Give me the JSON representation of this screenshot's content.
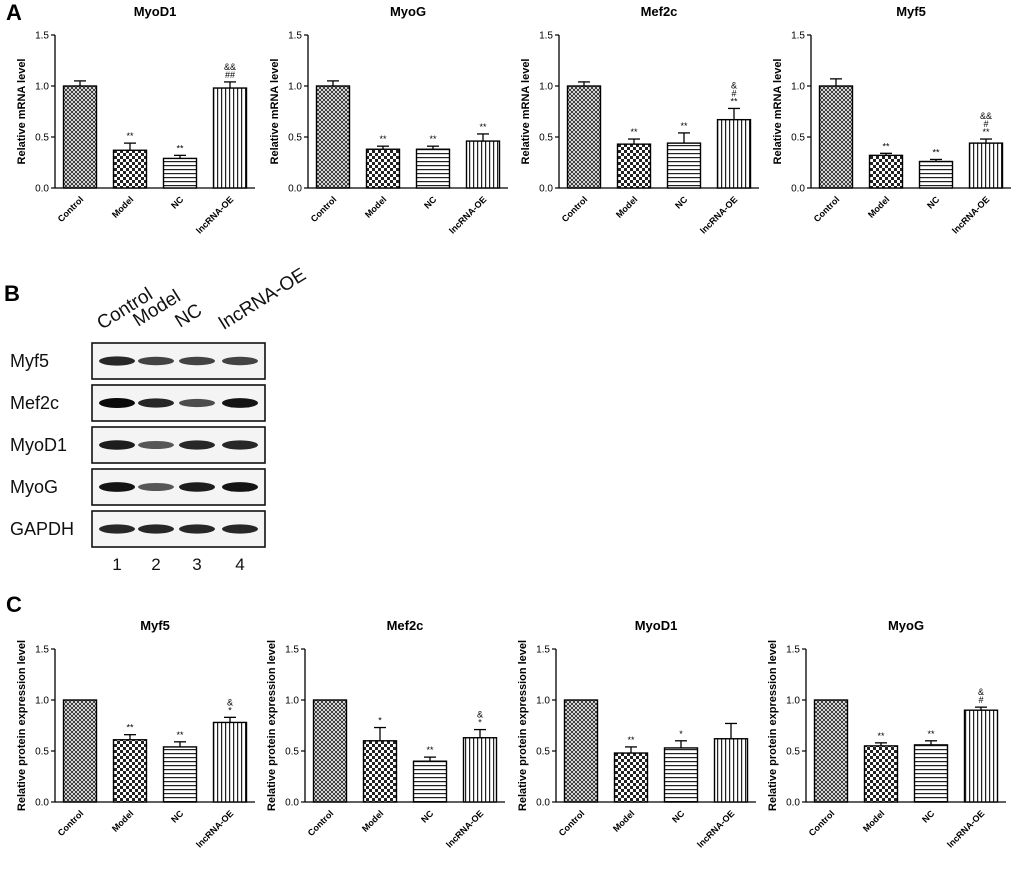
{
  "panels": {
    "a": "A",
    "b": "B",
    "c": "C"
  },
  "western_blot": {
    "lane_headers": [
      "Control",
      "Model",
      "NC",
      "lncRNA-OE"
    ],
    "lane_numbers": [
      "1",
      "2",
      "3",
      "4"
    ],
    "rows": [
      {
        "label": "Myf5",
        "intensity": [
          0.85,
          0.7,
          0.7,
          0.7
        ]
      },
      {
        "label": "Mef2c",
        "intensity": [
          1.0,
          0.85,
          0.65,
          0.95
        ]
      },
      {
        "label": "MyoD1",
        "intensity": [
          0.9,
          0.6,
          0.85,
          0.85
        ]
      },
      {
        "label": "MyoG",
        "intensity": [
          0.95,
          0.6,
          0.9,
          0.95
        ]
      },
      {
        "label": "GAPDH",
        "intensity": [
          0.85,
          0.85,
          0.85,
          0.85
        ]
      }
    ]
  },
  "chart_data": [
    {
      "type": "bar",
      "panel": "A",
      "title": "MyoD1",
      "ylabel": "Relative mRNA level",
      "ylim": [
        0,
        1.5
      ],
      "yticks": [
        "0.0",
        "0.5",
        "1.0",
        "1.5"
      ],
      "categories": [
        "Control",
        "Model",
        "NC",
        "lncRNA-OE"
      ],
      "values": [
        1.0,
        0.37,
        0.29,
        0.98
      ],
      "errors": [
        0.05,
        0.07,
        0.03,
        0.06
      ],
      "annotations": [
        [],
        [
          "**"
        ],
        [
          "**"
        ],
        [
          "&&",
          "##"
        ]
      ]
    },
    {
      "type": "bar",
      "panel": "A",
      "title": "MyoG",
      "ylabel": "Relative mRNA level",
      "ylim": [
        0,
        1.5
      ],
      "yticks": [
        "0.0",
        "0.5",
        "1.0",
        "1.5"
      ],
      "categories": [
        "Control",
        "Model",
        "NC",
        "lncRNA-OE"
      ],
      "values": [
        1.0,
        0.38,
        0.38,
        0.46
      ],
      "errors": [
        0.05,
        0.03,
        0.03,
        0.07
      ],
      "annotations": [
        [],
        [
          "**"
        ],
        [
          "**"
        ],
        [
          "**"
        ]
      ]
    },
    {
      "type": "bar",
      "panel": "A",
      "title": "Mef2c",
      "ylabel": "Relative mRNA level",
      "ylim": [
        0,
        1.5
      ],
      "yticks": [
        "0.0",
        "0.5",
        "1.0",
        "1.5"
      ],
      "categories": [
        "Control",
        "Model",
        "NC",
        "lncRNA-OE"
      ],
      "values": [
        1.0,
        0.43,
        0.44,
        0.67
      ],
      "errors": [
        0.04,
        0.05,
        0.1,
        0.11
      ],
      "annotations": [
        [],
        [
          "**"
        ],
        [
          "**"
        ],
        [
          "&",
          "#",
          "**"
        ]
      ]
    },
    {
      "type": "bar",
      "panel": "A",
      "title": "Myf5",
      "ylabel": "Relative mRNA level",
      "ylim": [
        0,
        1.5
      ],
      "yticks": [
        "0.0",
        "0.5",
        "1.0",
        "1.5"
      ],
      "categories": [
        "Control",
        "Model",
        "NC",
        "lncRNA-OE"
      ],
      "values": [
        1.0,
        0.32,
        0.26,
        0.44
      ],
      "errors": [
        0.07,
        0.02,
        0.02,
        0.04
      ],
      "annotations": [
        [],
        [
          "**"
        ],
        [
          "**"
        ],
        [
          "&&",
          "#",
          "**"
        ]
      ]
    },
    {
      "type": "bar",
      "panel": "C",
      "title": "Myf5",
      "ylabel": "Relative protein expression level",
      "ylim": [
        0,
        1.5
      ],
      "yticks": [
        "0.0",
        "0.5",
        "1.0",
        "1.5"
      ],
      "categories": [
        "Control",
        "Model",
        "NC",
        "lncRNA-OE"
      ],
      "values": [
        1.0,
        0.61,
        0.54,
        0.78
      ],
      "errors": [
        0.0,
        0.05,
        0.05,
        0.05
      ],
      "annotations": [
        [],
        [
          "**"
        ],
        [
          "**"
        ],
        [
          "&",
          "*"
        ]
      ]
    },
    {
      "type": "bar",
      "panel": "C",
      "title": "Mef2c",
      "ylabel": "Relative protein expression level",
      "ylim": [
        0,
        1.5
      ],
      "yticks": [
        "0.0",
        "0.5",
        "1.0",
        "1.5"
      ],
      "categories": [
        "Control",
        "Model",
        "NC",
        "lncRNA-OE"
      ],
      "values": [
        1.0,
        0.6,
        0.4,
        0.63
      ],
      "errors": [
        0.0,
        0.13,
        0.04,
        0.08
      ],
      "annotations": [
        [],
        [
          "*"
        ],
        [
          "**"
        ],
        [
          "&",
          "*"
        ]
      ]
    },
    {
      "type": "bar",
      "panel": "C",
      "title": "MyoD1",
      "ylabel": "Relative protein expression level",
      "ylim": [
        0,
        1.5
      ],
      "yticks": [
        "0.0",
        "0.5",
        "1.0",
        "1.5"
      ],
      "categories": [
        "Control",
        "Model",
        "NC",
        "lncRNA-OE"
      ],
      "values": [
        1.0,
        0.48,
        0.53,
        0.62
      ],
      "errors": [
        0.0,
        0.06,
        0.07,
        0.15
      ],
      "annotations": [
        [],
        [
          "**"
        ],
        [
          "*"
        ],
        []
      ]
    },
    {
      "type": "bar",
      "panel": "C",
      "title": "MyoG",
      "ylabel": "Relative protein expression level",
      "ylim": [
        0,
        1.5
      ],
      "yticks": [
        "0.0",
        "0.5",
        "1.0",
        "1.5"
      ],
      "categories": [
        "Control",
        "Model",
        "NC",
        "lncRNA-OE"
      ],
      "values": [
        1.0,
        0.55,
        0.56,
        0.9
      ],
      "errors": [
        0.0,
        0.03,
        0.04,
        0.03
      ],
      "annotations": [
        [],
        [
          "**"
        ],
        [
          "**"
        ],
        [
          "&",
          "#"
        ]
      ]
    }
  ]
}
